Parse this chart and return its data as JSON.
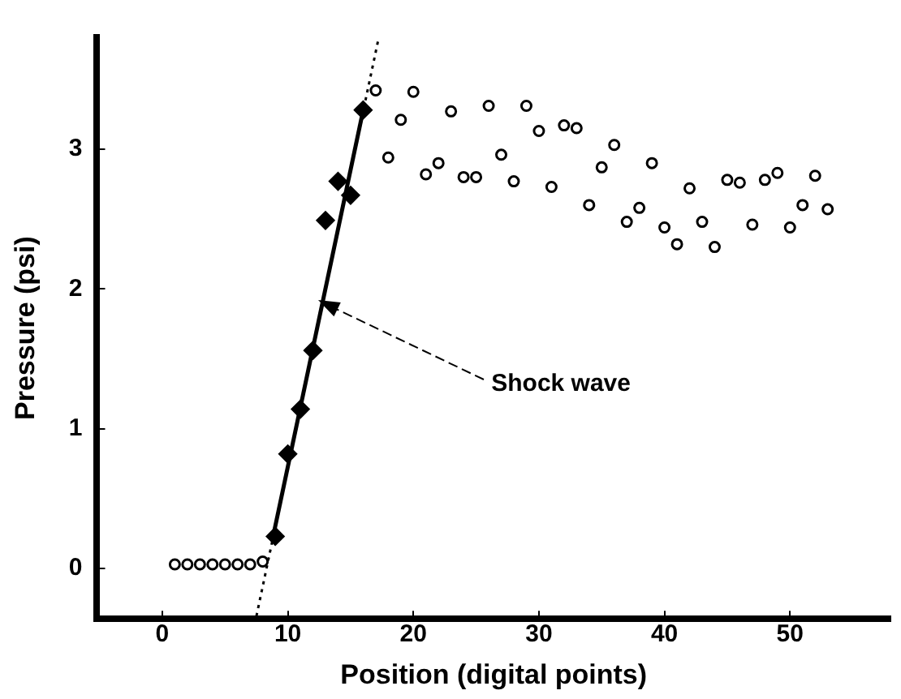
{
  "chart_data": {
    "type": "scatter",
    "xlabel": "Position (digital points)",
    "ylabel": "Pressure (psi)",
    "xlim": [
      -5.2,
      58
    ],
    "xticks": [
      0,
      10,
      20,
      30,
      40,
      50
    ],
    "ylim": [
      -0.36,
      3.8
    ],
    "yticks": [
      0,
      1,
      2,
      3
    ],
    "grid": false,
    "legend": false,
    "series": [
      {
        "type": "scatter",
        "marker": "circle",
        "color": "#000000",
        "x": [
          1,
          2,
          3,
          4,
          5,
          6,
          7,
          8,
          17,
          18,
          19,
          20,
          21,
          22,
          23,
          24,
          25,
          26,
          27,
          28,
          29,
          30,
          31,
          32,
          33,
          34,
          35,
          36,
          37,
          38,
          39,
          40,
          41,
          42,
          43,
          44,
          45,
          46,
          47,
          48,
          49,
          50,
          51,
          52,
          53
        ],
        "values": [
          0.03,
          0.03,
          0.03,
          0.03,
          0.03,
          0.03,
          0.03,
          0.05,
          3.42,
          2.94,
          3.21,
          3.41,
          2.82,
          2.9,
          3.27,
          2.8,
          2.8,
          3.31,
          2.96,
          2.77,
          3.31,
          3.13,
          2.73,
          3.17,
          3.15,
          2.6,
          2.87,
          3.03,
          2.48,
          2.58,
          2.9,
          2.44,
          2.32,
          2.72,
          2.48,
          2.3,
          2.78,
          2.76,
          2.46,
          2.78,
          2.83,
          2.44,
          2.6,
          2.81,
          2.57
        ]
      },
      {
        "type": "scatter",
        "marker": "diamond",
        "color": "#000000",
        "x": [
          9,
          10,
          11,
          12,
          13,
          14,
          15,
          16
        ],
        "values": [
          0.23,
          0.82,
          1.14,
          1.56,
          2.49,
          2.77,
          2.67,
          3.28
        ]
      },
      {
        "type": "line",
        "line_style": "dotted",
        "color": "#000000",
        "x": [
          7.5,
          17.2
        ],
        "values": [
          -0.34,
          3.78
        ]
      },
      {
        "type": "line",
        "line_style": "solid",
        "color": "#000000",
        "x": [
          8.9,
          16.1
        ],
        "values": [
          0.26,
          3.32
        ]
      }
    ],
    "annotations": [
      "Shock wave"
    ]
  }
}
